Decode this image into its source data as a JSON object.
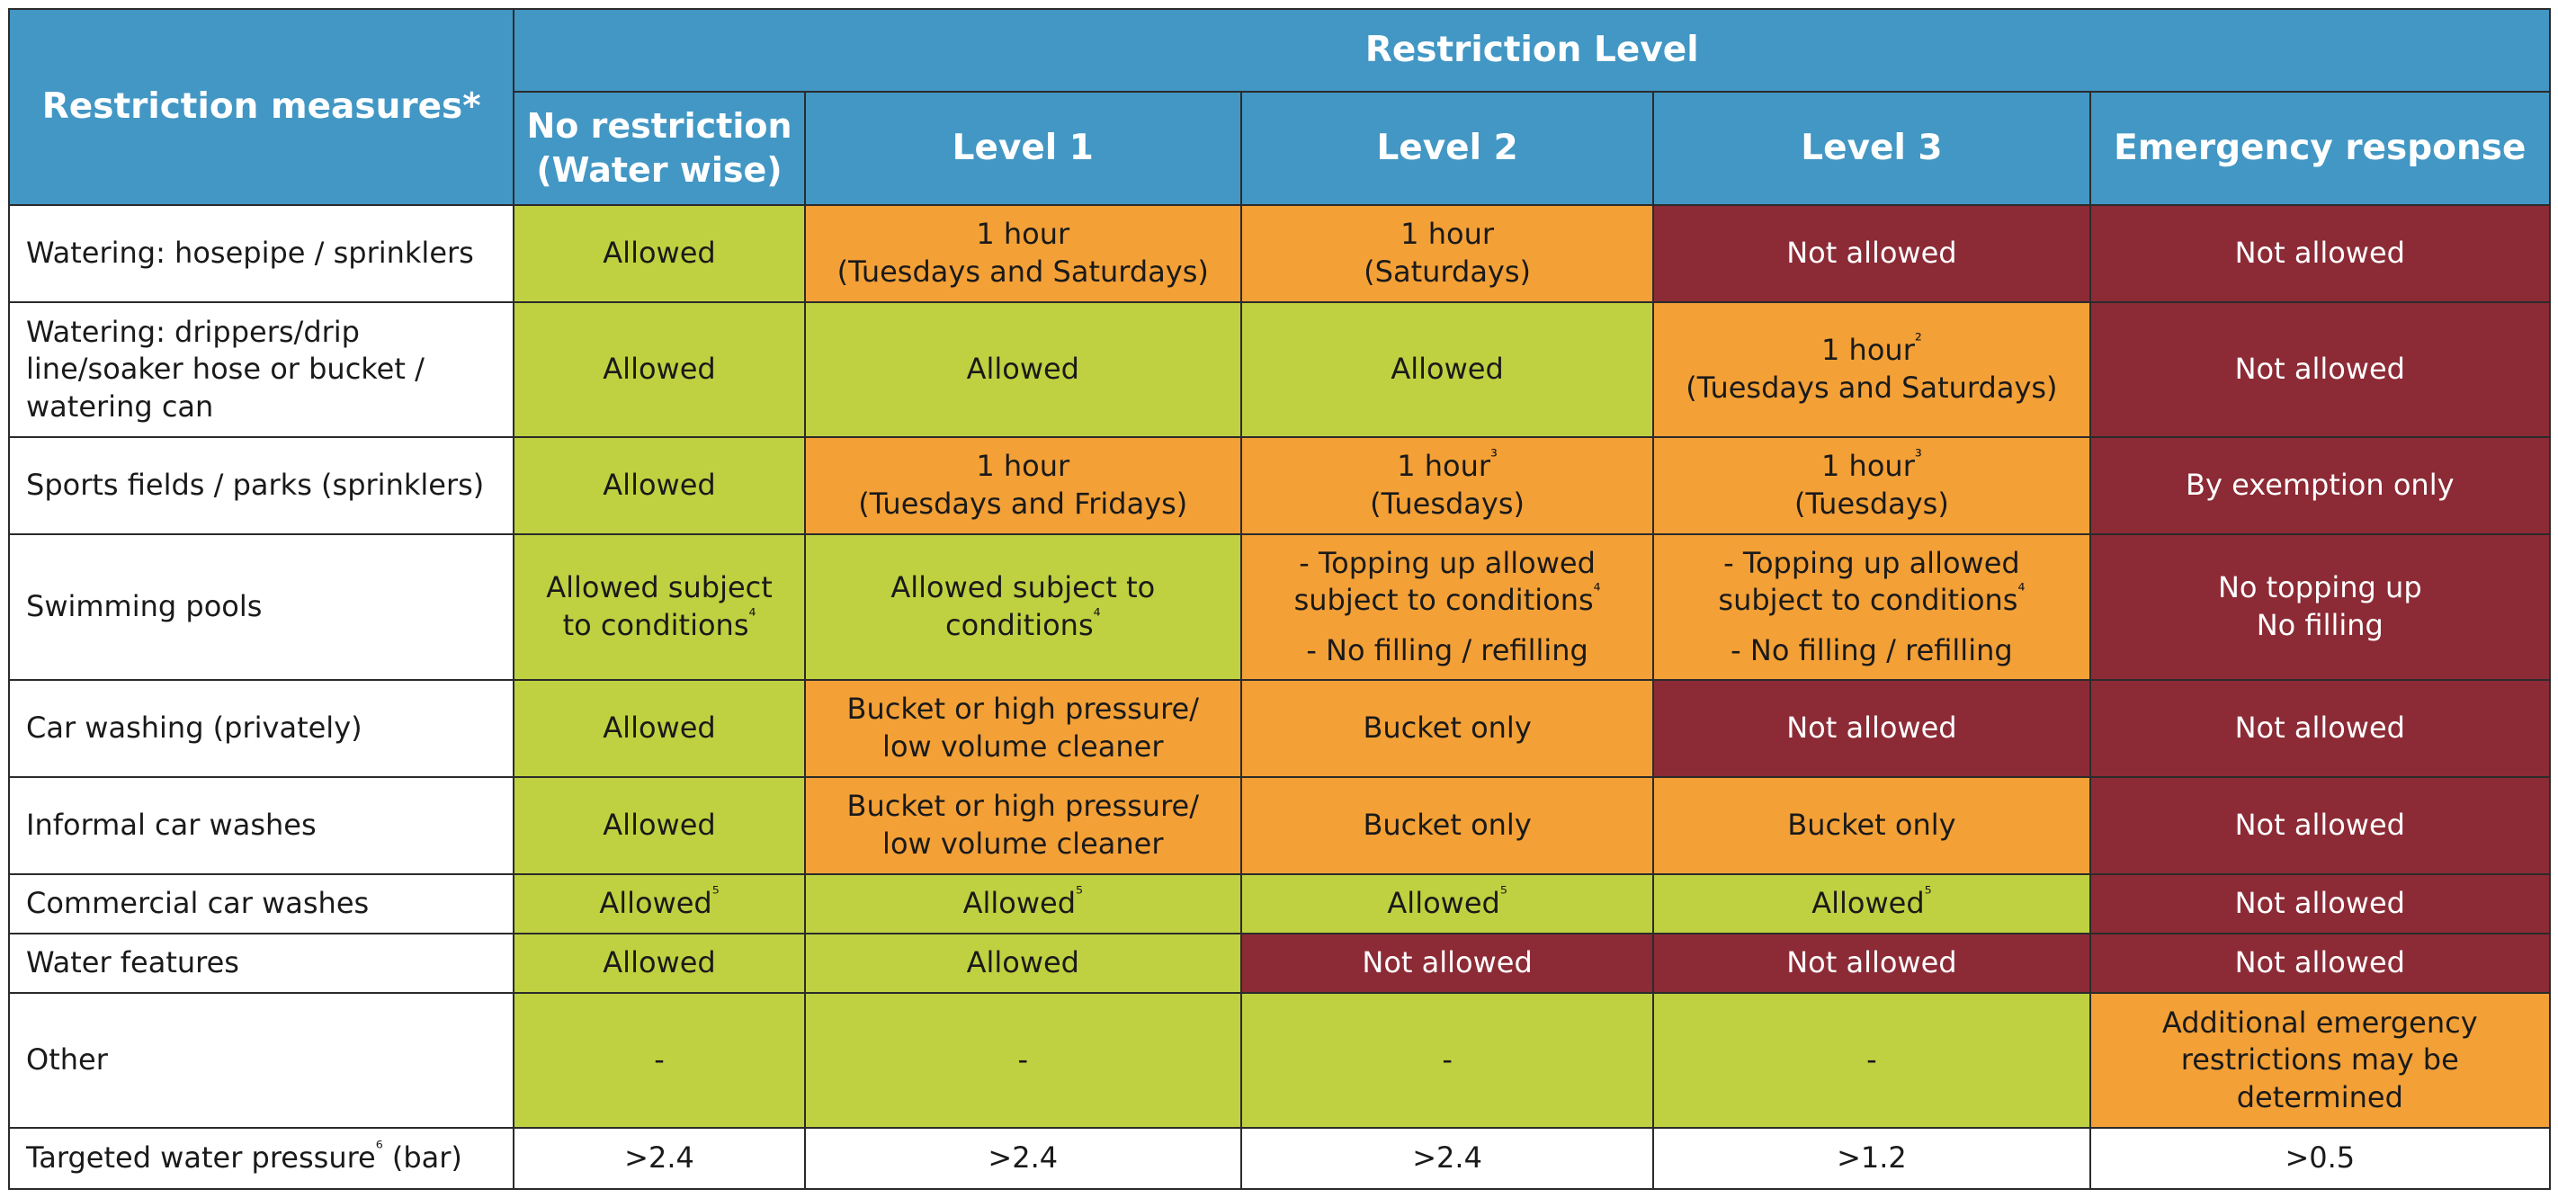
{
  "header": {
    "measures_title": "Restriction measures*",
    "level_group_title": "Restriction Level",
    "levels": [
      "No restriction\n(Water wise)",
      "Level 1",
      "Level 2",
      "Level 3",
      "Emergency response"
    ]
  },
  "rows": [
    {
      "label": "Watering: hosepipe / sprinklers",
      "cells": [
        {
          "status": "green",
          "lines": [
            "Allowed"
          ]
        },
        {
          "status": "orange",
          "lines": [
            "1 hour",
            "(Tuesdays and Saturdays)"
          ]
        },
        {
          "status": "orange",
          "lines": [
            "1 hour",
            "(Saturdays)"
          ]
        },
        {
          "status": "red",
          "lines": [
            "Not allowed"
          ]
        },
        {
          "status": "red",
          "lines": [
            "Not allowed"
          ]
        }
      ]
    },
    {
      "label": "Watering: drippers/drip line/soaker hose or bucket / watering can",
      "cells": [
        {
          "status": "green",
          "lines": [
            "Allowed"
          ]
        },
        {
          "status": "green",
          "lines": [
            "Allowed"
          ]
        },
        {
          "status": "green",
          "lines": [
            "Allowed"
          ]
        },
        {
          "status": "orange",
          "lines": [
            "1 hour²",
            "(Tuesdays and Saturdays)"
          ]
        },
        {
          "status": "red",
          "lines": [
            "Not allowed"
          ]
        }
      ]
    },
    {
      "label": "Sports fields / parks (sprinklers)",
      "cells": [
        {
          "status": "green",
          "lines": [
            "Allowed"
          ]
        },
        {
          "status": "orange",
          "lines": [
            "1 hour",
            "(Tuesdays and Fridays)"
          ]
        },
        {
          "status": "orange",
          "lines": [
            "1 hour³",
            "(Tuesdays)"
          ]
        },
        {
          "status": "orange",
          "lines": [
            "1 hour³",
            "(Tuesdays)"
          ]
        },
        {
          "status": "red",
          "lines": [
            "By exemption only"
          ]
        }
      ]
    },
    {
      "label": "Swimming pools",
      "cells": [
        {
          "status": "green",
          "lines": [
            "Allowed subject",
            "to conditions⁴"
          ]
        },
        {
          "status": "green",
          "lines": [
            "Allowed subject to",
            "conditions⁴"
          ]
        },
        {
          "status": "orange",
          "lines": [
            "- Topping up allowed",
            "subject to conditions⁴",
            "- No filling / refilling"
          ]
        },
        {
          "status": "orange",
          "lines": [
            "- Topping up allowed",
            "subject to conditions⁴",
            "- No filling / refilling"
          ]
        },
        {
          "status": "red",
          "lines": [
            "No topping up",
            "No filling"
          ]
        }
      ]
    },
    {
      "label": "Car washing (privately)",
      "cells": [
        {
          "status": "green",
          "lines": [
            "Allowed"
          ]
        },
        {
          "status": "orange",
          "lines": [
            "Bucket or high pressure/",
            "low volume cleaner"
          ]
        },
        {
          "status": "orange",
          "lines": [
            "Bucket only"
          ]
        },
        {
          "status": "red",
          "lines": [
            "Not allowed"
          ]
        },
        {
          "status": "red",
          "lines": [
            "Not allowed"
          ]
        }
      ]
    },
    {
      "label": "Informal car washes",
      "cells": [
        {
          "status": "green",
          "lines": [
            "Allowed"
          ]
        },
        {
          "status": "orange",
          "lines": [
            "Bucket or high pressure/",
            "low volume cleaner"
          ]
        },
        {
          "status": "orange",
          "lines": [
            "Bucket only"
          ]
        },
        {
          "status": "orange",
          "lines": [
            "Bucket only"
          ]
        },
        {
          "status": "red",
          "lines": [
            "Not allowed"
          ]
        }
      ]
    },
    {
      "label": "Commercial car washes",
      "cells": [
        {
          "status": "green",
          "lines": [
            "Allowed⁵"
          ]
        },
        {
          "status": "green",
          "lines": [
            "Allowed⁵"
          ]
        },
        {
          "status": "green",
          "lines": [
            "Allowed⁵"
          ]
        },
        {
          "status": "green",
          "lines": [
            "Allowed⁵"
          ]
        },
        {
          "status": "red",
          "lines": [
            "Not allowed"
          ]
        }
      ]
    },
    {
      "label": "Water features",
      "cells": [
        {
          "status": "green",
          "lines": [
            "Allowed"
          ]
        },
        {
          "status": "green",
          "lines": [
            "Allowed"
          ]
        },
        {
          "status": "red",
          "lines": [
            "Not allowed"
          ]
        },
        {
          "status": "red",
          "lines": [
            "Not allowed"
          ]
        },
        {
          "status": "red",
          "lines": [
            "Not allowed"
          ]
        }
      ]
    },
    {
      "label": "Other",
      "cells": [
        {
          "status": "green",
          "lines": [
            "-"
          ]
        },
        {
          "status": "green",
          "lines": [
            "-"
          ]
        },
        {
          "status": "green",
          "lines": [
            "-"
          ]
        },
        {
          "status": "green",
          "lines": [
            "-"
          ]
        },
        {
          "status": "orange",
          "lines": [
            "Additional emergency",
            "restrictions may be",
            "determined"
          ]
        }
      ]
    },
    {
      "label": "Targeted water pressure⁶ (bar)",
      "cells": [
        {
          "status": "white",
          "lines": [
            ">2.4"
          ]
        },
        {
          "status": "white",
          "lines": [
            ">2.4"
          ]
        },
        {
          "status": "white",
          "lines": [
            ">2.4"
          ]
        },
        {
          "status": "white",
          "lines": [
            ">1.2"
          ]
        },
        {
          "status": "white",
          "lines": [
            ">0.5"
          ]
        }
      ]
    }
  ],
  "colors": {
    "header_blue": "#4297c4",
    "allowed_green": "#bfd140",
    "limited_orange": "#f3a037",
    "prohibited_red": "#8c2b36"
  }
}
